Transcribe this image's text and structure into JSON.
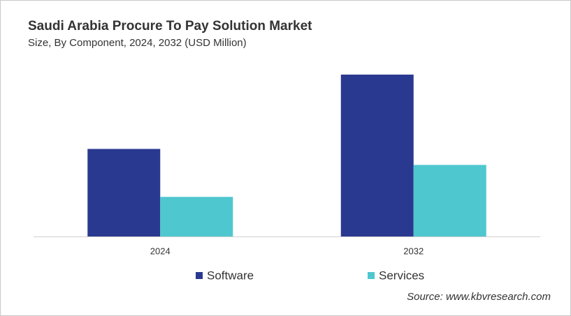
{
  "chart_data": {
    "type": "bar",
    "title": "Saudi Arabia Procure To Pay Solution Market",
    "subtitle": "Size, By Component, 2024, 2032 (USD Million)",
    "categories": [
      "2024",
      "2032"
    ],
    "series": [
      {
        "name": "Software",
        "color": "#2a3990",
        "values": [
          126,
          233
        ]
      },
      {
        "name": "Services",
        "color": "#4fc7cf",
        "values": [
          57,
          103
        ]
      }
    ],
    "ylim": [
      0,
      250
    ],
    "source": "Source: www.kbvresearch.com"
  }
}
